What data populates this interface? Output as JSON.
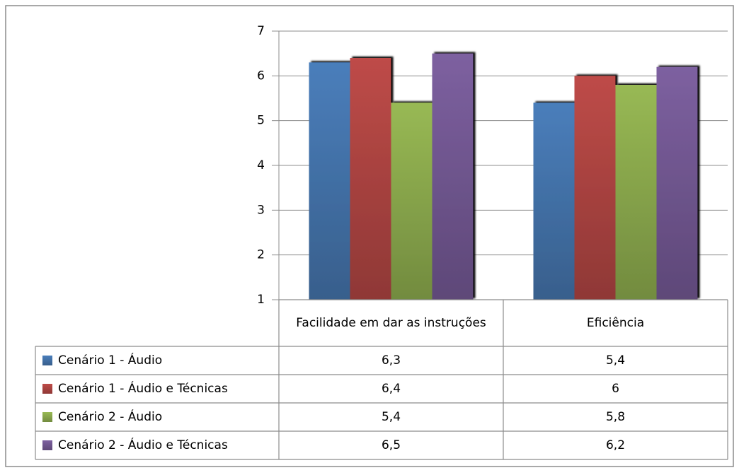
{
  "chart_data": {
    "type": "bar",
    "categories": [
      "Facilidade em dar as instruções",
      "Eficiência"
    ],
    "series": [
      {
        "name": "Cenário 1 - Áudio",
        "color": "#4a7ebb",
        "values": [
          6.3,
          5.4
        ],
        "value_labels": [
          "6,3",
          "5,4"
        ]
      },
      {
        "name": "Cenário 1 - Áudio e Técnicas",
        "color": "#be4b48",
        "values": [
          6.4,
          6
        ],
        "value_labels": [
          "6,4",
          "6"
        ]
      },
      {
        "name": "Cenário 2 - Áudio",
        "color": "#98b954",
        "values": [
          5.4,
          5.8
        ],
        "value_labels": [
          "5,4",
          "5,8"
        ]
      },
      {
        "name": "Cenário 2 - Áudio e Técnicas",
        "color": "#7d60a0",
        "values": [
          6.5,
          6.2
        ],
        "value_labels": [
          "6,5",
          "6,2"
        ]
      }
    ],
    "ylim": [
      1,
      7
    ],
    "yticks": [
      1,
      2,
      3,
      4,
      5,
      6,
      7
    ],
    "grid": true
  }
}
